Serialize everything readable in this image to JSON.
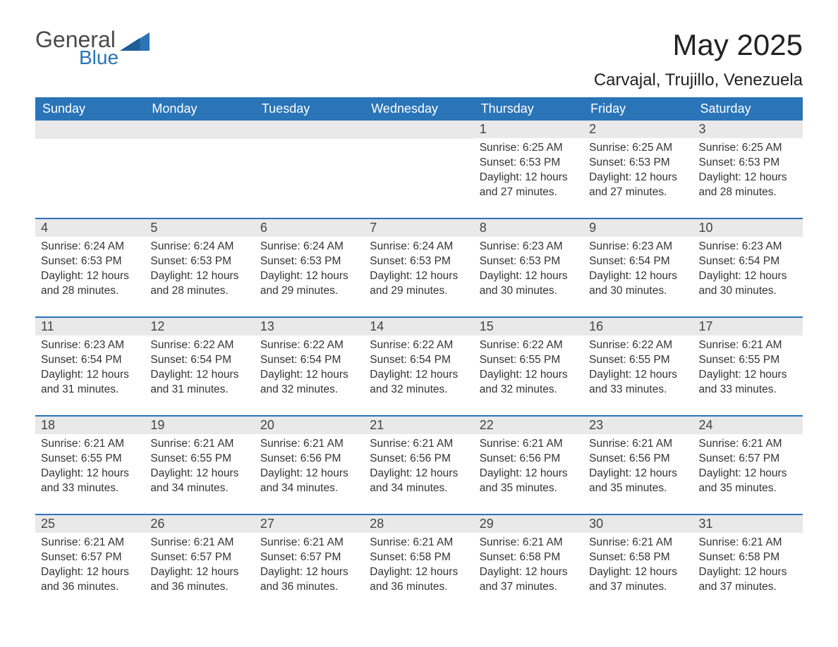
{
  "logo": {
    "word1": "General",
    "word2": "Blue",
    "color_gray": "#4a4a4a",
    "color_blue": "#2a74b8"
  },
  "title": "May 2025",
  "location": "Carvajal, Trujillo, Venezuela",
  "colors": {
    "header_bg": "#2a74b8",
    "header_text": "#ffffff",
    "daynum_bg": "#e9e9e9",
    "body_text": "#333333",
    "page_bg": "#ffffff",
    "week_border": "#2a74b8"
  },
  "typography": {
    "title_fontsize": 42,
    "location_fontsize": 24,
    "weekday_fontsize": 18,
    "daynum_fontsize": 18,
    "body_fontsize": 15.5
  },
  "weekdays": [
    "Sunday",
    "Monday",
    "Tuesday",
    "Wednesday",
    "Thursday",
    "Friday",
    "Saturday"
  ],
  "labels": {
    "sunrise": "Sunrise:",
    "sunset": "Sunset:",
    "daylight": "Daylight:"
  },
  "weeks": [
    [
      {
        "empty": true
      },
      {
        "empty": true
      },
      {
        "empty": true
      },
      {
        "empty": true
      },
      {
        "num": "1",
        "sunrise": "6:25 AM",
        "sunset": "6:53 PM",
        "daylight": "12 hours and 27 minutes."
      },
      {
        "num": "2",
        "sunrise": "6:25 AM",
        "sunset": "6:53 PM",
        "daylight": "12 hours and 27 minutes."
      },
      {
        "num": "3",
        "sunrise": "6:25 AM",
        "sunset": "6:53 PM",
        "daylight": "12 hours and 28 minutes."
      }
    ],
    [
      {
        "num": "4",
        "sunrise": "6:24 AM",
        "sunset": "6:53 PM",
        "daylight": "12 hours and 28 minutes."
      },
      {
        "num": "5",
        "sunrise": "6:24 AM",
        "sunset": "6:53 PM",
        "daylight": "12 hours and 28 minutes."
      },
      {
        "num": "6",
        "sunrise": "6:24 AM",
        "sunset": "6:53 PM",
        "daylight": "12 hours and 29 minutes."
      },
      {
        "num": "7",
        "sunrise": "6:24 AM",
        "sunset": "6:53 PM",
        "daylight": "12 hours and 29 minutes."
      },
      {
        "num": "8",
        "sunrise": "6:23 AM",
        "sunset": "6:53 PM",
        "daylight": "12 hours and 30 minutes."
      },
      {
        "num": "9",
        "sunrise": "6:23 AM",
        "sunset": "6:54 PM",
        "daylight": "12 hours and 30 minutes."
      },
      {
        "num": "10",
        "sunrise": "6:23 AM",
        "sunset": "6:54 PM",
        "daylight": "12 hours and 30 minutes."
      }
    ],
    [
      {
        "num": "11",
        "sunrise": "6:23 AM",
        "sunset": "6:54 PM",
        "daylight": "12 hours and 31 minutes."
      },
      {
        "num": "12",
        "sunrise": "6:22 AM",
        "sunset": "6:54 PM",
        "daylight": "12 hours and 31 minutes."
      },
      {
        "num": "13",
        "sunrise": "6:22 AM",
        "sunset": "6:54 PM",
        "daylight": "12 hours and 32 minutes."
      },
      {
        "num": "14",
        "sunrise": "6:22 AM",
        "sunset": "6:54 PM",
        "daylight": "12 hours and 32 minutes."
      },
      {
        "num": "15",
        "sunrise": "6:22 AM",
        "sunset": "6:55 PM",
        "daylight": "12 hours and 32 minutes."
      },
      {
        "num": "16",
        "sunrise": "6:22 AM",
        "sunset": "6:55 PM",
        "daylight": "12 hours and 33 minutes."
      },
      {
        "num": "17",
        "sunrise": "6:21 AM",
        "sunset": "6:55 PM",
        "daylight": "12 hours and 33 minutes."
      }
    ],
    [
      {
        "num": "18",
        "sunrise": "6:21 AM",
        "sunset": "6:55 PM",
        "daylight": "12 hours and 33 minutes."
      },
      {
        "num": "19",
        "sunrise": "6:21 AM",
        "sunset": "6:55 PM",
        "daylight": "12 hours and 34 minutes."
      },
      {
        "num": "20",
        "sunrise": "6:21 AM",
        "sunset": "6:56 PM",
        "daylight": "12 hours and 34 minutes."
      },
      {
        "num": "21",
        "sunrise": "6:21 AM",
        "sunset": "6:56 PM",
        "daylight": "12 hours and 34 minutes."
      },
      {
        "num": "22",
        "sunrise": "6:21 AM",
        "sunset": "6:56 PM",
        "daylight": "12 hours and 35 minutes."
      },
      {
        "num": "23",
        "sunrise": "6:21 AM",
        "sunset": "6:56 PM",
        "daylight": "12 hours and 35 minutes."
      },
      {
        "num": "24",
        "sunrise": "6:21 AM",
        "sunset": "6:57 PM",
        "daylight": "12 hours and 35 minutes."
      }
    ],
    [
      {
        "num": "25",
        "sunrise": "6:21 AM",
        "sunset": "6:57 PM",
        "daylight": "12 hours and 36 minutes."
      },
      {
        "num": "26",
        "sunrise": "6:21 AM",
        "sunset": "6:57 PM",
        "daylight": "12 hours and 36 minutes."
      },
      {
        "num": "27",
        "sunrise": "6:21 AM",
        "sunset": "6:57 PM",
        "daylight": "12 hours and 36 minutes."
      },
      {
        "num": "28",
        "sunrise": "6:21 AM",
        "sunset": "6:58 PM",
        "daylight": "12 hours and 36 minutes."
      },
      {
        "num": "29",
        "sunrise": "6:21 AM",
        "sunset": "6:58 PM",
        "daylight": "12 hours and 37 minutes."
      },
      {
        "num": "30",
        "sunrise": "6:21 AM",
        "sunset": "6:58 PM",
        "daylight": "12 hours and 37 minutes."
      },
      {
        "num": "31",
        "sunrise": "6:21 AM",
        "sunset": "6:58 PM",
        "daylight": "12 hours and 37 minutes."
      }
    ]
  ]
}
